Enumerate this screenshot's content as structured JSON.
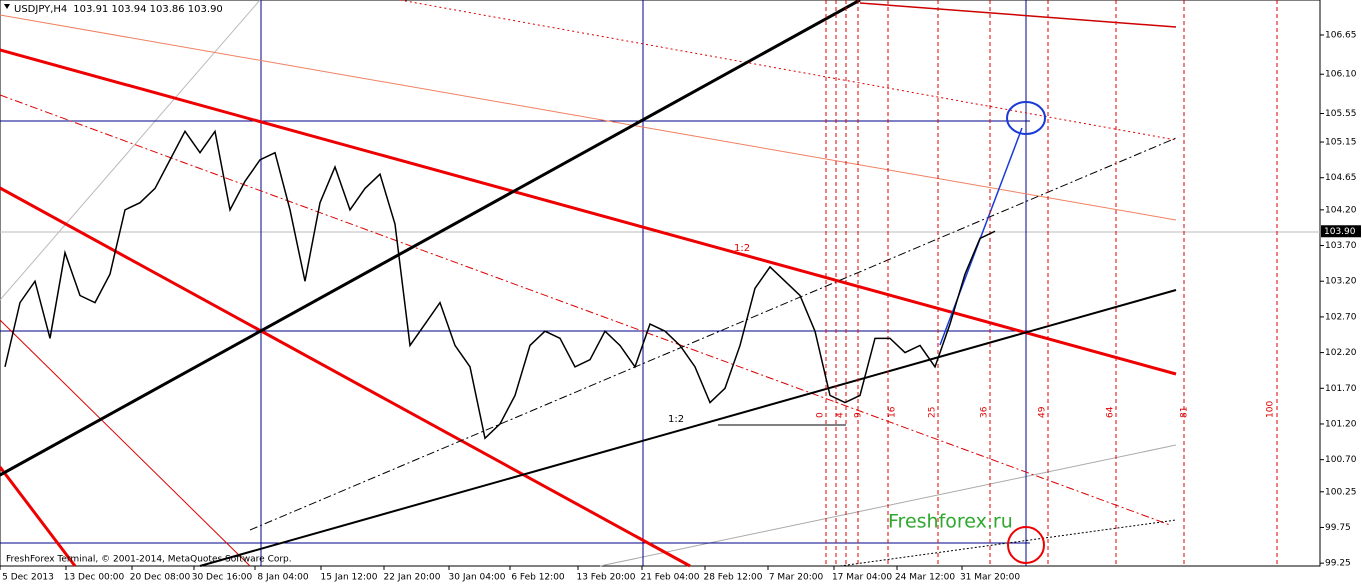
{
  "header": {
    "symbol": "USDJPY,H4",
    "quote": "103.91 103.94 103.86 103.90"
  },
  "price_axis": {
    "ylim": [
      99.21,
      107.14
    ],
    "ticks": [
      106.65,
      {
        "value": 106.1,
        "label": "106.10"
      },
      105.55,
      105.15,
      104.65,
      {
        "value": 104.2,
        "label": "104.20"
      },
      {
        "value": 103.7,
        "label": "103.70"
      },
      {
        "value": 103.2,
        "label": "103.20"
      },
      {
        "value": 102.7,
        "label": "102.70"
      },
      {
        "value": 102.2,
        "label": "102.20"
      },
      {
        "value": 101.7,
        "label": "101.70"
      },
      {
        "value": 101.2,
        "label": "101.20"
      },
      {
        "value": 100.7,
        "label": "100.70"
      },
      100.25,
      99.75,
      99.25
    ],
    "current": {
      "value": 103.9,
      "label": "103.90"
    }
  },
  "time_axis": [
    "5 Dec 2013",
    "13 Dec 00:00",
    "20 Dec 08:00",
    "30 Dec 16:00",
    "8 Jan 04:00",
    "15 Jan 12:00",
    "22 Jan 20:00",
    "30 Jan 04:00",
    "6 Feb 12:00",
    "13 Feb 20:00",
    "21 Feb 04:00",
    "28 Feb 12:00",
    "7 Mar 20:00",
    "17 Mar 04:00",
    "24 Mar 12:00",
    "31 Mar 20:00"
  ],
  "price_series": {
    "values": [
      102.0,
      102.9,
      103.2,
      102.4,
      103.6,
      103.0,
      102.9,
      103.3,
      104.2,
      104.3,
      104.5,
      104.9,
      105.3,
      105.0,
      105.3,
      104.2,
      104.6,
      104.9,
      105.0,
      104.2,
      103.2,
      104.3,
      104.8,
      104.2,
      104.5,
      104.7,
      104.0,
      102.3,
      102.6,
      102.9,
      102.3,
      102.0,
      101.0,
      101.2,
      101.6,
      102.3,
      102.5,
      102.4,
      102.0,
      102.1,
      102.5,
      102.3,
      102.0,
      102.6,
      102.5,
      102.3,
      102.0,
      101.5,
      101.7,
      102.3,
      103.1,
      103.4,
      103.2,
      103.0,
      102.5,
      101.6,
      101.5,
      101.6,
      102.4,
      102.4,
      102.2,
      102.3,
      102.0,
      102.6,
      103.3,
      103.8,
      103.9
    ]
  },
  "fib_labels": [
    "0",
    "4",
    "9",
    "16",
    "25",
    "36",
    "49",
    "64",
    "81",
    "100"
  ],
  "ratio_labels": [
    "1:2",
    "1:2"
  ],
  "watermark": "Freshforex.ru",
  "footer": "FreshForex Terminal, © 2001-2014, MetaQuotes Software Corp."
}
